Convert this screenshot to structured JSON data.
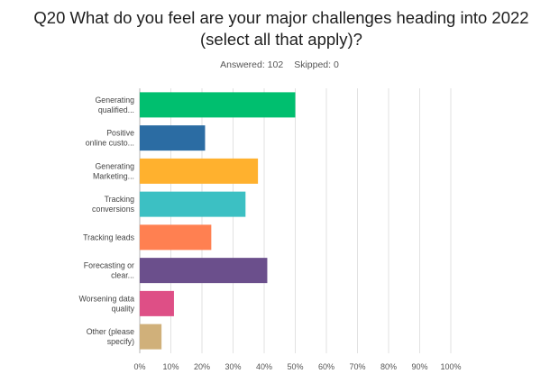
{
  "title": "Q20 What do you feel are your major challenges heading into 2022 (select all that apply)?",
  "answered": "Answered: 102",
  "skipped": "Skipped: 0",
  "chart_data": {
    "type": "bar",
    "orientation": "horizontal",
    "categories": [
      [
        "Generating",
        "qualified..."
      ],
      [
        "Positive",
        "online custo..."
      ],
      [
        "Generating",
        "Marketing..."
      ],
      [
        "Tracking",
        "conversions"
      ],
      [
        "Tracking leads"
      ],
      [
        "Forecasting or",
        "clear..."
      ],
      [
        "Worsening data",
        "quality"
      ],
      [
        "Other (please",
        "specify)"
      ]
    ],
    "values": [
      50,
      21,
      38,
      34,
      23,
      41,
      11,
      7
    ],
    "colors": [
      "#00bf6f",
      "#2b6ca3",
      "#ffb12e",
      "#3cc0c3",
      "#ff8051",
      "#6b4f8c",
      "#de4f86",
      "#d0b07a"
    ],
    "xlim": [
      0,
      100
    ],
    "xticks": [
      "0%",
      "10%",
      "20%",
      "30%",
      "40%",
      "50%",
      "60%",
      "70%",
      "80%",
      "90%",
      "100%"
    ],
    "grid": true,
    "legend": "none"
  }
}
